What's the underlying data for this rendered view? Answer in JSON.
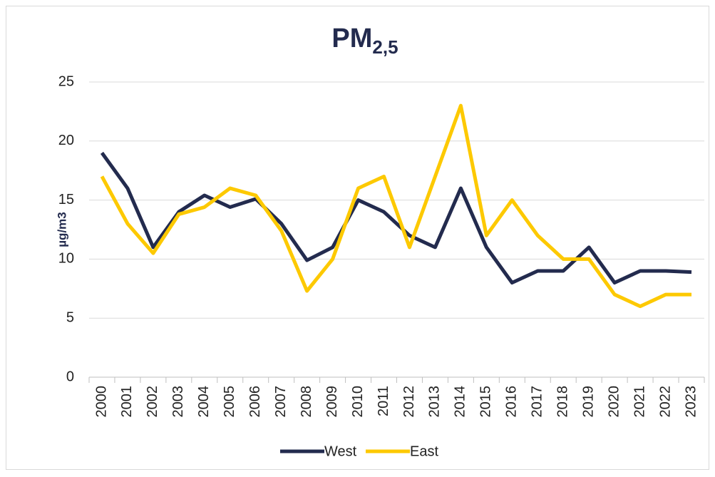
{
  "chart_data": {
    "type": "line",
    "title": "PM",
    "title_subscript": "2,5",
    "y_label": "µg/m3",
    "categories": [
      "2000",
      "2001",
      "2002",
      "2003",
      "2004",
      "2005",
      "2006",
      "2007",
      "2008",
      "2009",
      "2010",
      "2011",
      "2012",
      "2013",
      "2014",
      "2015",
      "2016",
      "2017",
      "2018",
      "2019",
      "2020",
      "2021",
      "2022",
      "2023"
    ],
    "series": [
      {
        "name": "West",
        "color": "#232b4e",
        "values": [
          19,
          16,
          11,
          14,
          15.4,
          14.4,
          15.1,
          13,
          9.9,
          11,
          15,
          14,
          12,
          11,
          16,
          11,
          8,
          9,
          9,
          11,
          8,
          9,
          9,
          8.9
        ]
      },
      {
        "name": "East",
        "color": "#fdc900",
        "values": [
          17,
          13,
          10.5,
          13.8,
          14.4,
          16,
          15.4,
          12.4,
          7.3,
          10,
          16,
          17,
          11,
          17,
          23,
          12,
          15,
          12,
          10,
          10,
          7,
          6,
          7,
          7
        ]
      }
    ],
    "ylim": [
      0,
      25
    ],
    "yticks": [
      0,
      5,
      10,
      15,
      20,
      25
    ],
    "grid": true,
    "legend": "bottom"
  }
}
